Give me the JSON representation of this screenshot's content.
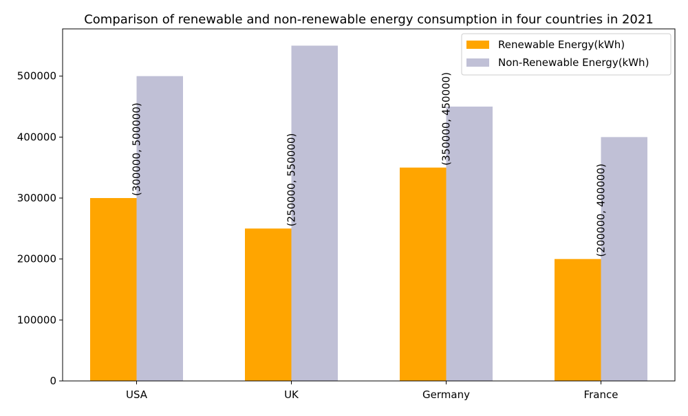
{
  "chart_data": {
    "type": "bar",
    "title": "Comparison of renewable and non-renewable energy consumption in four countries in 2021",
    "xlabel": "",
    "ylabel": "",
    "categories": [
      "USA",
      "UK",
      "Germany",
      "France"
    ],
    "series": [
      {
        "name": "Renewable Energy(kWh)",
        "values": [
          300000,
          250000,
          350000,
          200000
        ],
        "color": "#FFA500"
      },
      {
        "name": "Non-Renewable Energy(kWh)",
        "values": [
          500000,
          550000,
          450000,
          400000
        ],
        "color": "#C0C0D6"
      }
    ],
    "data_labels": [
      "(300000, 500000)",
      "(250000, 550000)",
      "(350000, 450000)",
      "(200000, 400000)"
    ],
    "yticks": [
      0,
      100000,
      200000,
      300000,
      400000,
      500000
    ],
    "ytick_labels": [
      "0",
      "100000",
      "200000",
      "300000",
      "400000",
      "500000"
    ],
    "ylim": [
      0,
      577500
    ],
    "grid": false,
    "legend_position": "top-right"
  }
}
